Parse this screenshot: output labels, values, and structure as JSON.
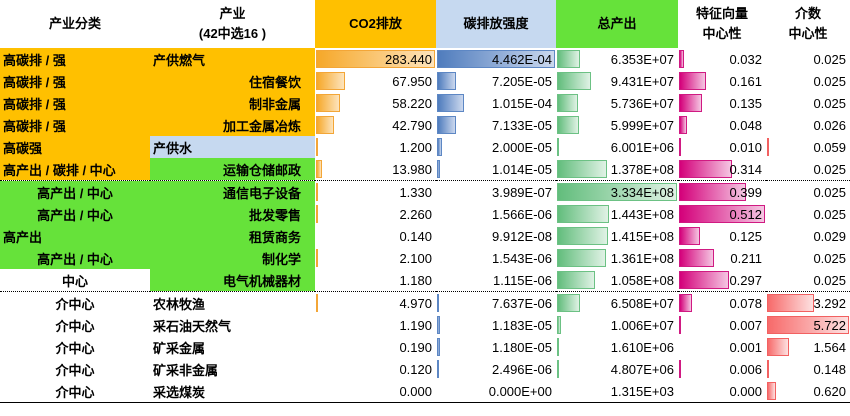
{
  "headers": {
    "category": "产业分类",
    "industry_line1": "产业",
    "industry_line2": "(42中选16 )",
    "co2": "CO2排放",
    "intensity": "碳排放强度",
    "output": "总产出",
    "eigen_line1": "特征向量",
    "eigen_line2": "中心性",
    "between_line1": "介数",
    "between_line2": "中心性"
  },
  "colors": {
    "orange": "#ffc000",
    "light_blue": "#c6d9f0",
    "green": "#66e23a",
    "co2_bar": "#f6a829",
    "intensity_bar": "#4f7cbd",
    "output_bar": "#62bd7c",
    "eigen_bar": "#d4007a",
    "between_bar": "#f76a6a"
  },
  "rows": [
    {
      "category": "高碳排 / 强",
      "industry": "产供燃气",
      "co2": "283.440",
      "co2_v": 283.44,
      "intensity": "4.462E-04",
      "intensity_v": 0.0004462,
      "output": "6.353E+07",
      "output_v": 63530000,
      "eigen": "0.032",
      "eigen_v": 0.032,
      "between": "0.025",
      "between_v": 0.025
    },
    {
      "category": "高碳排 / 强",
      "industry": "住宿餐饮",
      "co2": "67.950",
      "co2_v": 67.95,
      "intensity": "7.205E-05",
      "intensity_v": 7.205e-05,
      "output": "9.431E+07",
      "output_v": 94310000,
      "eigen": "0.161",
      "eigen_v": 0.161,
      "between": "0.025",
      "between_v": 0.025
    },
    {
      "category": "高碳排 / 强",
      "industry": "制非金属",
      "co2": "58.220",
      "co2_v": 58.22,
      "intensity": "1.015E-04",
      "intensity_v": 0.0001015,
      "output": "5.736E+07",
      "output_v": 57360000,
      "eigen": "0.135",
      "eigen_v": 0.135,
      "between": "0.025",
      "between_v": 0.025
    },
    {
      "category": "高碳排 / 强",
      "industry": "加工金属冶炼",
      "co2": "42.790",
      "co2_v": 42.79,
      "intensity": "7.133E-05",
      "intensity_v": 7.133e-05,
      "output": "5.999E+07",
      "output_v": 59990000,
      "eigen": "0.048",
      "eigen_v": 0.048,
      "between": "0.026",
      "between_v": 0.026
    },
    {
      "category": "高碳强",
      "industry": "产供水",
      "co2": "1.200",
      "co2_v": 1.2,
      "intensity": "2.000E-05",
      "intensity_v": 2e-05,
      "output": "6.001E+06",
      "output_v": 6001000,
      "eigen": "0.010",
      "eigen_v": 0.01,
      "between": "0.059",
      "between_v": 0.059
    },
    {
      "category": "高产出 / 碳排 / 中心",
      "industry": "运输仓储邮政",
      "co2": "13.980",
      "co2_v": 13.98,
      "intensity": "1.014E-05",
      "intensity_v": 1.014e-05,
      "output": "1.378E+08",
      "output_v": 137800000,
      "eigen": "0.314",
      "eigen_v": 0.314,
      "between": "0.025",
      "between_v": 0.025
    },
    {
      "category": "高产出 / 中心",
      "industry": "通信电子设备",
      "co2": "1.330",
      "co2_v": 1.33,
      "intensity": "3.989E-07",
      "intensity_v": 3.989e-07,
      "output": "3.334E+08",
      "output_v": 333400000,
      "eigen": "0.399",
      "eigen_v": 0.399,
      "between": "0.025",
      "between_v": 0.025
    },
    {
      "category": "高产出 / 中心",
      "industry": "批发零售",
      "co2": "2.260",
      "co2_v": 2.26,
      "intensity": "1.566E-06",
      "intensity_v": 1.566e-06,
      "output": "1.443E+08",
      "output_v": 144300000,
      "eigen": "0.512",
      "eigen_v": 0.512,
      "between": "0.025",
      "between_v": 0.025
    },
    {
      "category": "高产出",
      "industry": "租赁商务",
      "co2": "0.140",
      "co2_v": 0.14,
      "intensity": "9.912E-08",
      "intensity_v": 9.912e-08,
      "output": "1.415E+08",
      "output_v": 141500000,
      "eigen": "0.125",
      "eigen_v": 0.125,
      "between": "0.029",
      "between_v": 0.029
    },
    {
      "category": "高产出 / 中心",
      "industry": "制化学",
      "co2": "2.100",
      "co2_v": 2.1,
      "intensity": "1.543E-06",
      "intensity_v": 1.543e-06,
      "output": "1.361E+08",
      "output_v": 136100000,
      "eigen": "0.211",
      "eigen_v": 0.211,
      "between": "0.025",
      "between_v": 0.025
    },
    {
      "category": "中心",
      "industry": "电气机械器材",
      "co2": "1.180",
      "co2_v": 1.18,
      "intensity": "1.115E-06",
      "intensity_v": 1.115e-06,
      "output": "1.058E+08",
      "output_v": 105800000,
      "eigen": "0.297",
      "eigen_v": 0.297,
      "between": "0.025",
      "between_v": 0.025
    },
    {
      "category": "介中心",
      "industry": "农林牧渔",
      "co2": "4.970",
      "co2_v": 4.97,
      "intensity": "7.637E-06",
      "intensity_v": 7.637e-06,
      "output": "6.508E+07",
      "output_v": 65080000,
      "eigen": "0.078",
      "eigen_v": 0.078,
      "between": "3.292",
      "between_v": 3.292
    },
    {
      "category": "介中心",
      "industry": "采石油天然气",
      "co2": "1.190",
      "co2_v": 1.19,
      "intensity": "1.183E-05",
      "intensity_v": 1.183e-05,
      "output": "1.006E+07",
      "output_v": 10060000,
      "eigen": "0.007",
      "eigen_v": 0.007,
      "between": "5.722",
      "between_v": 5.722
    },
    {
      "category": "介中心",
      "industry": "矿采金属",
      "co2": "0.190",
      "co2_v": 0.19,
      "intensity": "1.180E-05",
      "intensity_v": 1.18e-05,
      "output": "1.610E+06",
      "output_v": 1610000,
      "eigen": "0.001",
      "eigen_v": 0.001,
      "between": "1.564",
      "between_v": 1.564
    },
    {
      "category": "介中心",
      "industry": "矿采非金属",
      "co2": "0.120",
      "co2_v": 0.12,
      "intensity": "2.496E-06",
      "intensity_v": 2.496e-06,
      "output": "4.807E+06",
      "output_v": 4807000,
      "eigen": "0.006",
      "eigen_v": 0.006,
      "between": "0.148",
      "between_v": 0.148
    },
    {
      "category": "介中心",
      "industry": "采选煤炭",
      "co2": "0.000",
      "co2_v": 0,
      "intensity": "0.000E+00",
      "intensity_v": 0,
      "output": "1.315E+03",
      "output_v": 1315,
      "eigen": "0.000",
      "eigen_v": 0,
      "between": "0.620",
      "between_v": 0.62
    }
  ]
}
